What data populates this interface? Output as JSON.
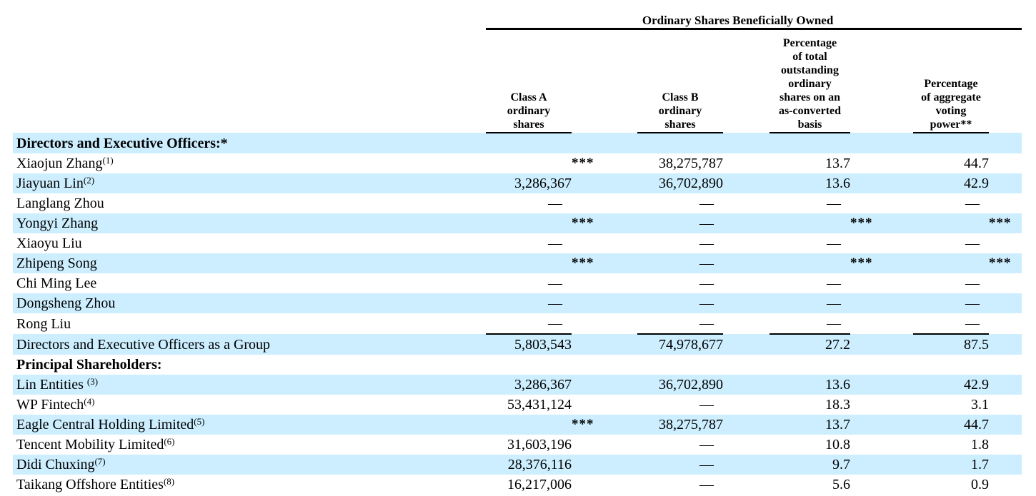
{
  "document": {
    "group_header": "Ordinary Shares Beneficially Owned",
    "columns": [
      {
        "id": "class-a",
        "label_lines": [
          "Class A",
          "ordinary",
          "shares"
        ]
      },
      {
        "id": "class-b",
        "label_lines": [
          "Class B",
          "ordinary",
          "shares"
        ]
      },
      {
        "id": "pct-outstanding",
        "label_lines": [
          "Percentage",
          "of total",
          "outstanding",
          "ordinary",
          "shares on an",
          "as-converted",
          "basis"
        ]
      },
      {
        "id": "pct-voting",
        "label_lines": [
          "Percentage",
          "of aggregate",
          "voting",
          "power**"
        ]
      }
    ],
    "colors": {
      "highlight": "#cceeff",
      "text": "#000000",
      "rule": "#000000"
    },
    "rows": [
      {
        "name": "Directors and Executive Officers:*",
        "sup": "",
        "bold": true,
        "highlight": true,
        "sumline": false,
        "cells": [
          {
            "v": "",
            "m": ""
          },
          {
            "v": "",
            "m": ""
          },
          {
            "v": "",
            "m": ""
          },
          {
            "v": "",
            "m": ""
          }
        ]
      },
      {
        "name": "Xiaojun Zhang",
        "sup": "(1)",
        "bold": false,
        "highlight": false,
        "sumline": false,
        "cells": [
          {
            "v": "",
            "m": "***"
          },
          {
            "v": "38,275,787",
            "m": ""
          },
          {
            "v": "13.7",
            "m": ""
          },
          {
            "v": "44.7",
            "m": ""
          }
        ]
      },
      {
        "name": "Jiayuan Lin",
        "sup": "(2)",
        "bold": false,
        "highlight": true,
        "sumline": false,
        "cells": [
          {
            "v": "3,286,367",
            "m": ""
          },
          {
            "v": "36,702,890",
            "m": ""
          },
          {
            "v": "13.6",
            "m": ""
          },
          {
            "v": "42.9",
            "m": ""
          }
        ]
      },
      {
        "name": "Langlang Zhou",
        "sup": "",
        "bold": false,
        "highlight": false,
        "sumline": false,
        "cells": [
          {
            "v": "—",
            "m": ""
          },
          {
            "v": "—",
            "m": ""
          },
          {
            "v": "—",
            "m": ""
          },
          {
            "v": "—",
            "m": ""
          }
        ]
      },
      {
        "name": "Yongyi Zhang",
        "sup": "",
        "bold": false,
        "highlight": true,
        "sumline": false,
        "cells": [
          {
            "v": "",
            "m": "***"
          },
          {
            "v": "—",
            "m": ""
          },
          {
            "v": "",
            "m": "***"
          },
          {
            "v": "",
            "m": "***"
          }
        ]
      },
      {
        "name": "Xiaoyu Liu",
        "sup": "",
        "bold": false,
        "highlight": false,
        "sumline": false,
        "cells": [
          {
            "v": "—",
            "m": ""
          },
          {
            "v": "—",
            "m": ""
          },
          {
            "v": "—",
            "m": ""
          },
          {
            "v": "—",
            "m": ""
          }
        ]
      },
      {
        "name": "Zhipeng Song",
        "sup": "",
        "bold": false,
        "highlight": true,
        "sumline": false,
        "cells": [
          {
            "v": "",
            "m": "***"
          },
          {
            "v": "—",
            "m": ""
          },
          {
            "v": "",
            "m": "***"
          },
          {
            "v": "",
            "m": "***"
          }
        ]
      },
      {
        "name": "Chi Ming Lee",
        "sup": "",
        "bold": false,
        "highlight": false,
        "sumline": false,
        "cells": [
          {
            "v": "—",
            "m": ""
          },
          {
            "v": "—",
            "m": ""
          },
          {
            "v": "—",
            "m": ""
          },
          {
            "v": "—",
            "m": ""
          }
        ]
      },
      {
        "name": "Dongsheng Zhou",
        "sup": "",
        "bold": false,
        "highlight": true,
        "sumline": false,
        "cells": [
          {
            "v": "—",
            "m": ""
          },
          {
            "v": "—",
            "m": ""
          },
          {
            "v": "—",
            "m": ""
          },
          {
            "v": "—",
            "m": ""
          }
        ]
      },
      {
        "name": "Rong Liu",
        "sup": "",
        "bold": false,
        "highlight": false,
        "sumline": true,
        "cells": [
          {
            "v": "—",
            "m": ""
          },
          {
            "v": "—",
            "m": ""
          },
          {
            "v": "—",
            "m": ""
          },
          {
            "v": "—",
            "m": ""
          }
        ]
      },
      {
        "name": "Directors and Executive Officers as a Group",
        "sup": "",
        "bold": false,
        "highlight": true,
        "sumline": false,
        "cells": [
          {
            "v": "5,803,543",
            "m": ""
          },
          {
            "v": "74,978,677",
            "m": ""
          },
          {
            "v": "27.2",
            "m": ""
          },
          {
            "v": "87.5",
            "m": ""
          }
        ]
      },
      {
        "name": "Principal Shareholders:",
        "sup": "",
        "bold": true,
        "highlight": false,
        "sumline": false,
        "cells": [
          {
            "v": "",
            "m": ""
          },
          {
            "v": "",
            "m": ""
          },
          {
            "v": "",
            "m": ""
          },
          {
            "v": "",
            "m": ""
          }
        ]
      },
      {
        "name": "Lin Entities ",
        "sup": "(3)",
        "bold": false,
        "highlight": true,
        "sumline": false,
        "cells": [
          {
            "v": "3,286,367",
            "m": ""
          },
          {
            "v": "36,702,890",
            "m": ""
          },
          {
            "v": "13.6",
            "m": ""
          },
          {
            "v": "42.9",
            "m": ""
          }
        ]
      },
      {
        "name": "WP Fintech",
        "sup": "(4)",
        "bold": false,
        "highlight": false,
        "sumline": false,
        "cells": [
          {
            "v": "53,431,124",
            "m": ""
          },
          {
            "v": "—",
            "m": ""
          },
          {
            "v": "18.3",
            "m": ""
          },
          {
            "v": "3.1",
            "m": ""
          }
        ]
      },
      {
        "name": "Eagle Central Holding Limited",
        "sup": "(5)",
        "bold": false,
        "highlight": true,
        "sumline": false,
        "cells": [
          {
            "v": "",
            "m": "***"
          },
          {
            "v": "38,275,787",
            "m": ""
          },
          {
            "v": "13.7",
            "m": ""
          },
          {
            "v": "44.7",
            "m": ""
          }
        ]
      },
      {
        "name": "Tencent Mobility Limited",
        "sup": "(6)",
        "bold": false,
        "highlight": false,
        "sumline": false,
        "cells": [
          {
            "v": "31,603,196",
            "m": ""
          },
          {
            "v": "—",
            "m": ""
          },
          {
            "v": "10.8",
            "m": ""
          },
          {
            "v": "1.8",
            "m": ""
          }
        ]
      },
      {
        "name": "Didi Chuxing",
        "sup": "(7)",
        "bold": false,
        "highlight": true,
        "sumline": false,
        "cells": [
          {
            "v": "28,376,116",
            "m": ""
          },
          {
            "v": "—",
            "m": ""
          },
          {
            "v": "9.7",
            "m": ""
          },
          {
            "v": "1.7",
            "m": ""
          }
        ]
      },
      {
        "name": "Taikang Offshore Entities",
        "sup": "(8)",
        "bold": false,
        "highlight": false,
        "sumline": false,
        "cells": [
          {
            "v": "16,217,006",
            "m": ""
          },
          {
            "v": "—",
            "m": ""
          },
          {
            "v": "5.6",
            "m": ""
          },
          {
            "v": "0.9",
            "m": ""
          }
        ]
      }
    ]
  }
}
